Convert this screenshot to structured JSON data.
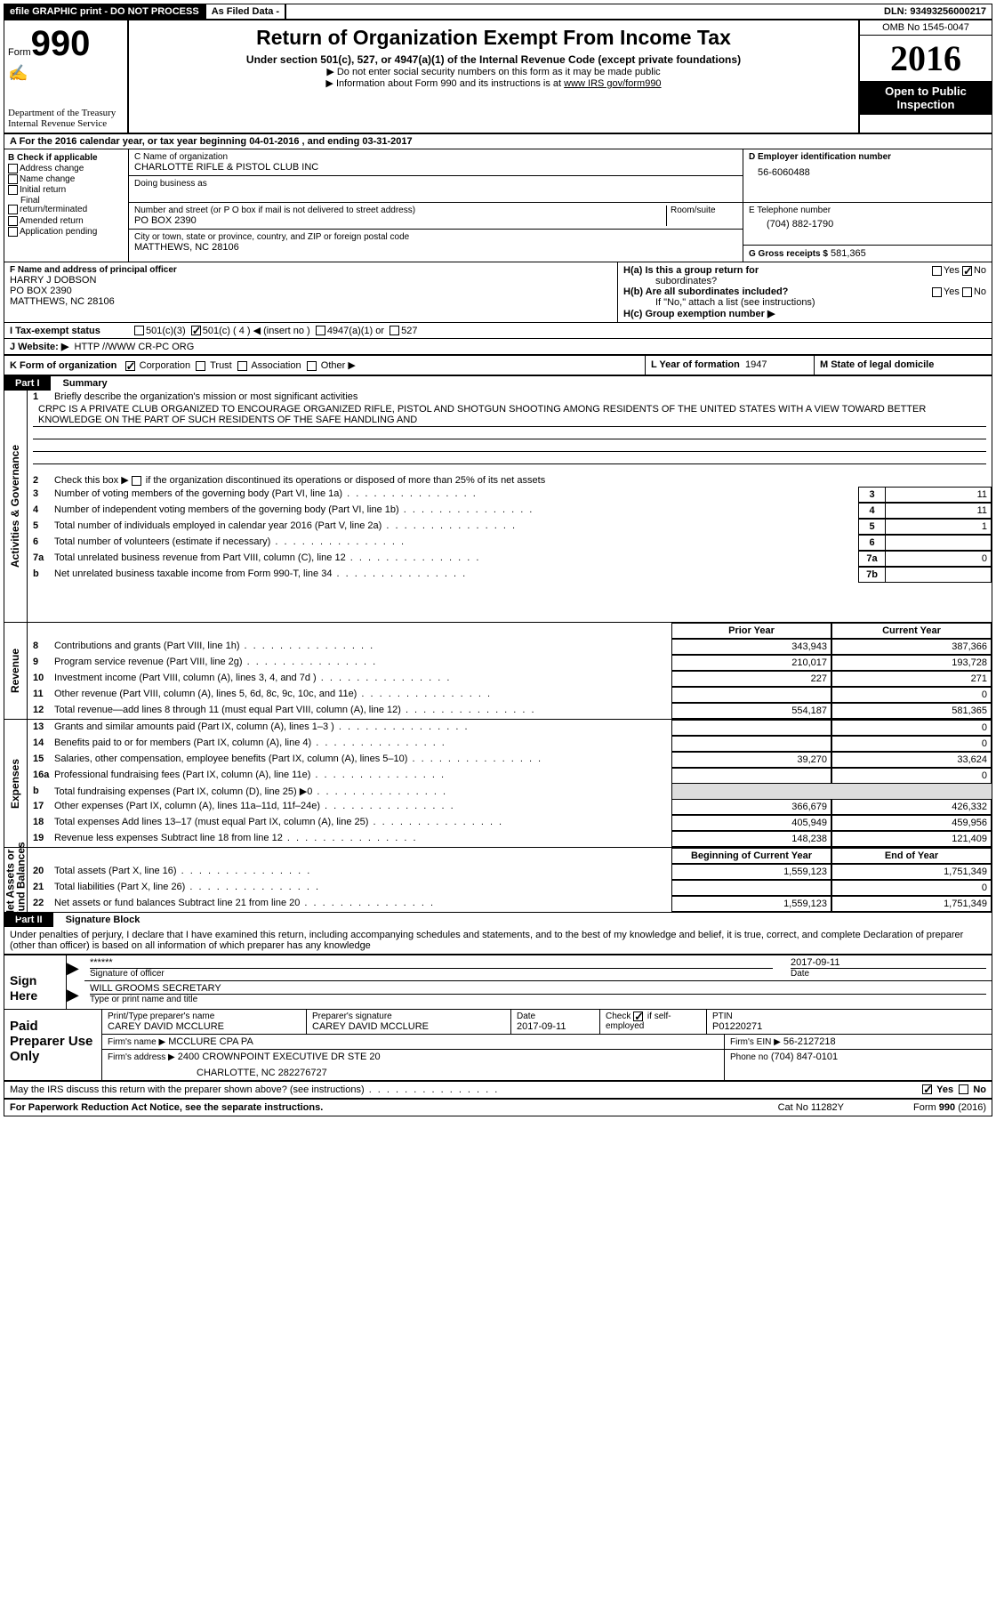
{
  "topbar": {
    "efile": "efile GRAPHIC print - DO NOT PROCESS",
    "asfiled": "As Filed Data -",
    "dln_label": "DLN:",
    "dln": "93493256000217"
  },
  "head": {
    "form_word": "Form",
    "form_num": "990",
    "dept1": "Department of the Treasury",
    "dept2": "Internal Revenue Service",
    "title": "Return of Organization Exempt From Income Tax",
    "sub": "Under section 501(c), 527, or 4947(a)(1) of the Internal Revenue Code (except private foundations)",
    "bullet1": "▶ Do not enter social security numbers on this form as it may be made public",
    "bullet2_pre": "▶ Information about Form 990 and its instructions is at ",
    "bullet2_link": "www IRS gov/form990",
    "omb": "OMB No  1545-0047",
    "year": "2016",
    "inspect1": "Open to Public",
    "inspect2": "Inspection"
  },
  "lineA": "A   For the 2016 calendar year, or tax year beginning 04-01-2016    , and ending 03-31-2017",
  "colB": {
    "hdr": "B Check if applicable",
    "c1": "Address change",
    "c2": "Name change",
    "c3": "Initial return",
    "c4a": "Final",
    "c4b": "return/terminated",
    "c5": "Amended return",
    "c6": "Application pending"
  },
  "colC": {
    "name_lbl": "C Name of organization",
    "name": "CHARLOTTE RIFLE & PISTOL CLUB INC",
    "dba_lbl": "Doing business as",
    "addr_lbl": "Number and street (or P O  box if mail is not delivered to street address)",
    "room_lbl": "Room/suite",
    "addr": "PO BOX 2390",
    "city_lbl": "City or town, state or province, country, and ZIP or foreign postal code",
    "city": "MATTHEWS, NC  28106"
  },
  "colD": {
    "ein_lbl": "D Employer identification number",
    "ein": "56-6060488",
    "tel_lbl": "E Telephone number",
    "tel": "(704) 882-1790",
    "gross_lbl": "G Gross receipts $",
    "gross": "581,365"
  },
  "secF": {
    "lbl": "F  Name and address of principal officer",
    "l1": "HARRY J DOBSON",
    "l2": "PO BOX 2390",
    "l3": "MATTHEWS, NC  28106"
  },
  "secH": {
    "ha": "H(a)  Is this a group return for",
    "ha2": "subordinates?",
    "hb": "H(b)  Are all subordinates included?",
    "hb2": "If \"No,\" attach a list  (see instructions)",
    "hc": "H(c)  Group exemption number ▶",
    "yes": "Yes",
    "no": "No"
  },
  "secI": {
    "lbl": "I   Tax-exempt status",
    "o1": "501(c)(3)",
    "o2": "501(c) ( 4 ) ◀ (insert no )",
    "o3": "4947(a)(1) or",
    "o4": "527"
  },
  "secJ": {
    "lbl": "J   Website: ▶",
    "val": "HTTP //WWW CR-PC ORG"
  },
  "secK": {
    "lbl": "K Form of organization",
    "o1": "Corporation",
    "o2": "Trust",
    "o3": "Association",
    "o4": "Other ▶"
  },
  "secL": {
    "lbl": "L Year of formation",
    "val": "1947"
  },
  "secM": {
    "lbl": "M State of legal domicile"
  },
  "part1": {
    "num": "Part I",
    "title": "Summary"
  },
  "summary": {
    "l1_lbl": "1",
    "l1_txt": "Briefly describe the organization's mission or most significant activities",
    "l1_val": "CRPC IS A PRIVATE CLUB ORGANIZED TO ENCOURAGE ORGANIZED RIFLE, PISTOL AND SHOTGUN SHOOTING AMONG RESIDENTS OF THE UNITED STATES WITH A VIEW TOWARD BETTER KNOWLEDGE ON THE PART OF SUCH RESIDENTS OF THE SAFE HANDLING AND",
    "l2_txt": "Check this box ▶      if the organization discontinued its operations or disposed of more than 25% of its net assets",
    "rows_gov": [
      {
        "n": "3",
        "t": "Number of voting members of the governing body (Part VI, line 1a)",
        "box": "3",
        "v": "11"
      },
      {
        "n": "4",
        "t": "Number of independent voting members of the governing body (Part VI, line 1b)",
        "box": "4",
        "v": "11"
      },
      {
        "n": "5",
        "t": "Total number of individuals employed in calendar year 2016 (Part V, line 2a)",
        "box": "5",
        "v": "1"
      },
      {
        "n": "6",
        "t": "Total number of volunteers (estimate if necessary)",
        "box": "6",
        "v": ""
      },
      {
        "n": "7a",
        "t": "Total unrelated business revenue from Part VIII, column (C), line 12",
        "box": "7a",
        "v": "0"
      },
      {
        "n": "b",
        "t": "Net unrelated business taxable income from Form 990-T, line 34",
        "box": "7b",
        "v": ""
      }
    ],
    "hdr_prior": "Prior Year",
    "hdr_curr": "Current Year",
    "rows_rev": [
      {
        "n": "8",
        "t": "Contributions and grants (Part VIII, line 1h)",
        "p": "343,943",
        "c": "387,366"
      },
      {
        "n": "9",
        "t": "Program service revenue (Part VIII, line 2g)",
        "p": "210,017",
        "c": "193,728"
      },
      {
        "n": "10",
        "t": "Investment income (Part VIII, column (A), lines 3, 4, and 7d )",
        "p": "227",
        "c": "271"
      },
      {
        "n": "11",
        "t": "Other revenue (Part VIII, column (A), lines 5, 6d, 8c, 9c, 10c, and 11e)",
        "p": "",
        "c": "0"
      },
      {
        "n": "12",
        "t": "Total revenue—add lines 8 through 11 (must equal Part VIII, column (A), line 12)",
        "p": "554,187",
        "c": "581,365"
      }
    ],
    "rows_exp": [
      {
        "n": "13",
        "t": "Grants and similar amounts paid (Part IX, column (A), lines 1–3 )",
        "p": "",
        "c": "0"
      },
      {
        "n": "14",
        "t": "Benefits paid to or for members (Part IX, column (A), line 4)",
        "p": "",
        "c": "0"
      },
      {
        "n": "15",
        "t": "Salaries, other compensation, employee benefits (Part IX, column (A), lines 5–10)",
        "p": "39,270",
        "c": "33,624"
      },
      {
        "n": "16a",
        "t": "Professional fundraising fees (Part IX, column (A), line 11e)",
        "p": "",
        "c": "0"
      },
      {
        "n": "b",
        "t": "Total fundraising expenses (Part IX, column (D), line 25) ▶0",
        "p": null,
        "c": null
      },
      {
        "n": "17",
        "t": "Other expenses (Part IX, column (A), lines 11a–11d, 11f–24e)",
        "p": "366,679",
        "c": "426,332"
      },
      {
        "n": "18",
        "t": "Total expenses  Add lines 13–17 (must equal Part IX, column (A), line 25)",
        "p": "405,949",
        "c": "459,956"
      },
      {
        "n": "19",
        "t": "Revenue less expenses  Subtract line 18 from line 12",
        "p": "148,238",
        "c": "121,409"
      }
    ],
    "hdr_beg": "Beginning of Current Year",
    "hdr_end": "End of Year",
    "rows_net": [
      {
        "n": "20",
        "t": "Total assets (Part X, line 16)",
        "p": "1,559,123",
        "c": "1,751,349"
      },
      {
        "n": "21",
        "t": "Total liabilities (Part X, line 26)",
        "p": "",
        "c": "0"
      },
      {
        "n": "22",
        "t": "Net assets or fund balances  Subtract line 21 from line 20",
        "p": "1,559,123",
        "c": "1,751,349"
      }
    ],
    "vtab1": "Activities & Governance",
    "vtab2": "Revenue",
    "vtab3": "Expenses",
    "vtab4a": "Net Assets or",
    "vtab4b": "Fund Balances"
  },
  "part2": {
    "num": "Part II",
    "title": "Signature Block"
  },
  "perjury": "Under penalties of perjury, I declare that I have examined this return, including accompanying schedules and statements, and to the best of my knowledge and belief, it is true, correct, and complete  Declaration of preparer (other than officer) is based on all information of which preparer has any knowledge",
  "sign": {
    "here": "Sign Here",
    "stars": "******",
    "sig_lbl": "Signature of officer",
    "date": "2017-09-11",
    "date_lbl": "Date",
    "name": "WILL GROOMS  SECRETARY",
    "name_lbl": "Type or print name and title"
  },
  "prep": {
    "lbl": "Paid Preparer Use Only",
    "c1_lbl": "Print/Type preparer's name",
    "c1": "CAREY DAVID MCCLURE",
    "c2_lbl": "Preparer's signature",
    "c2": "CAREY DAVID MCCLURE",
    "c3_lbl": "Date",
    "c3": "2017-09-11",
    "c4_lbl": "Check",
    "c4_lbl2": "if self-employed",
    "c5_lbl": "PTIN",
    "c5": "P01220271",
    "firm_lbl": "Firm's name     ▶",
    "firm": "MCCLURE CPA PA",
    "ein_lbl": "Firm's EIN ▶",
    "ein": "56-2127218",
    "addr_lbl": "Firm's address ▶",
    "addr1": "2400 CROWNPOINT EXECUTIVE DR STE 20",
    "addr2": "CHARLOTTE, NC  282276727",
    "phone_lbl": "Phone no",
    "phone": "(704) 847-0101"
  },
  "discuss": {
    "txt": "May the IRS discuss this return with the preparer shown above? (see instructions)",
    "yes": "Yes",
    "no": "No"
  },
  "footer": {
    "l": "For Paperwork Reduction Act Notice, see the separate instructions.",
    "m": "Cat No  11282Y",
    "r": "Form 990 (2016)"
  }
}
